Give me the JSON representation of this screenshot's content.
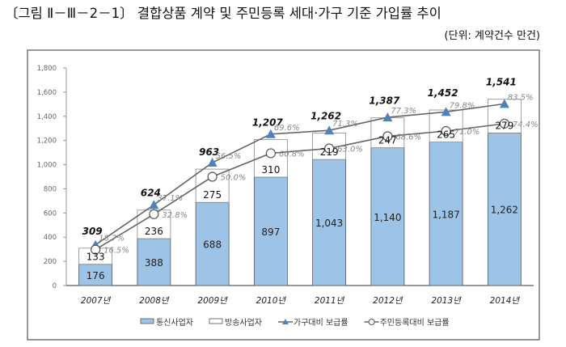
{
  "chart_data": {
    "type": "bar",
    "title": "〔그림 Ⅱ－Ⅲ－2－1〕 결합상품 계약 및 주민등록 세대·가구 기준 가입률 추이",
    "subtitle": "(단위: 계약건수 만건)",
    "categories": [
      "2007년",
      "2008년",
      "2009년",
      "2010년",
      "2011년",
      "2012년",
      "2013년",
      "2014년"
    ],
    "ylim": [
      0,
      1800
    ],
    "yticks": [
      "0",
      "200",
      "400",
      "600",
      "800",
      "1,000",
      "1,200",
      "1,400",
      "1,600",
      "1,800"
    ],
    "y2lim": [
      0,
      100
    ],
    "stacked": true,
    "grid": false,
    "legend_position": "bottom",
    "series": [
      {
        "name": "통신사업자",
        "kind": "bar",
        "color": "#9dc3e6",
        "values": [
          176,
          388,
          688,
          897,
          1043,
          1140,
          1187,
          1262
        ],
        "labels": [
          "176",
          "388",
          "688",
          "897",
          "1,043",
          "1,140",
          "1,187",
          "1,262"
        ]
      },
      {
        "name": "방송사업자",
        "kind": "bar",
        "color": "#ffffff",
        "values": [
          133,
          236,
          275,
          310,
          219,
          247,
          265,
          279
        ],
        "labels": [
          "133",
          "236",
          "275",
          "310",
          "219",
          "247",
          "265",
          "279"
        ]
      },
      {
        "name": "가구대비 보급률",
        "kind": "line",
        "marker": "triangle",
        "color": "#4f81bd",
        "axis": "secondary",
        "values": [
          18.7,
          37.1,
          56.5,
          69.6,
          71.3,
          77.3,
          79.8,
          83.5
        ],
        "labels": [
          "18.7%",
          "37.1%",
          "56.5%",
          "69.6%",
          "71.3%",
          "77.3%",
          "79.8%",
          "83.5%"
        ]
      },
      {
        "name": "주민등록대비 보급률",
        "kind": "line",
        "marker": "circle",
        "color": "#ffffff",
        "axis": "secondary",
        "values": [
          16.5,
          32.8,
          50.0,
          60.8,
          63.0,
          68.6,
          71.0,
          74.4
        ],
        "labels": [
          "16.5%",
          "32.8%",
          "50.0%",
          "60.8%",
          "63.0%",
          "68.6%",
          "71.0%",
          "74.4%"
        ]
      }
    ],
    "totals": [
      309,
      624,
      963,
      1207,
      1262,
      1387,
      1452,
      1541
    ],
    "total_labels": [
      "309",
      "624",
      "963",
      "1,207",
      "1,262",
      "1,387",
      "1,452",
      "1,541"
    ]
  }
}
